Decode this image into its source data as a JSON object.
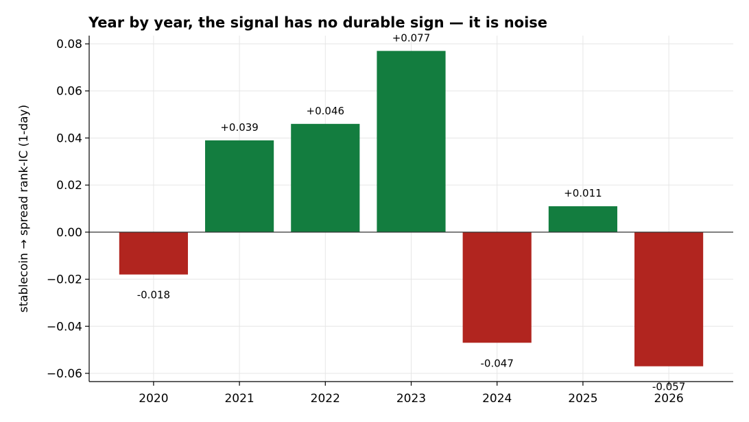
{
  "chart_data": {
    "type": "bar",
    "title": "Year by year, the signal has no durable sign — it is noise",
    "xlabel": "",
    "ylabel": "stablecoin → spread rank-IC (1-day)",
    "categories": [
      "2020",
      "2021",
      "2022",
      "2023",
      "2024",
      "2025",
      "2026"
    ],
    "values": [
      -0.018,
      0.039,
      0.046,
      0.077,
      -0.047,
      0.011,
      -0.057
    ],
    "data_labels": [
      "-0.018",
      "+0.039",
      "+0.046",
      "+0.077",
      "-0.047",
      "+0.011",
      "-0.057"
    ],
    "ylim": [
      -0.0635,
      0.0835
    ],
    "yticks": [
      -0.06,
      -0.04,
      -0.02,
      0.0,
      0.02,
      0.04,
      0.06,
      0.08
    ],
    "ytick_labels": [
      "−0.06",
      "−0.04",
      "−0.02",
      "0.00",
      "0.02",
      "0.04",
      "0.06",
      "0.08"
    ],
    "grid": true,
    "colors": {
      "positive": "#137d3f",
      "negative": "#b1251f"
    }
  }
}
